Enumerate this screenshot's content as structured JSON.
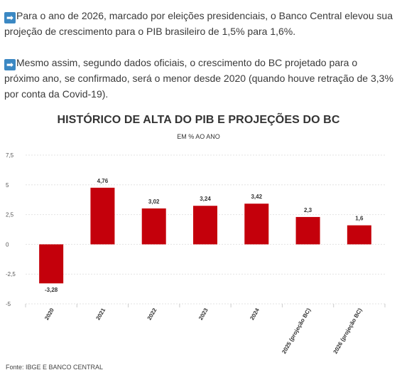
{
  "article": {
    "para1_icon": "right-arrow-icon",
    "para1": "Para o ano de 2026, marcado por eleições presidenciais, o Banco Central elevou sua projeção de crescimento para o PIB brasileiro de 1,5% para 1,6%.",
    "para2_icon": "right-arrow-icon",
    "para2": "Mesmo assim, segundo dados oficiais, o crescimento do BC projetado para o próximo ano, se confirmado, será o menor desde 2020 (quando houve retração de 3,3% por conta da Covid-19)."
  },
  "chart_data": {
    "type": "bar",
    "title": "HISTÓRICO DE ALTA DO PIB E PROJEÇÕES DO BC",
    "subtitle": "EM % AO ANO",
    "categories": [
      "2020",
      "2021",
      "2022",
      "2023",
      "2024",
      "2025 (projeção BC)",
      "2026 (projeção BC)"
    ],
    "values": [
      -3.28,
      4.76,
      3.02,
      3.24,
      3.42,
      2.3,
      1.6
    ],
    "value_labels": [
      "-3,28",
      "4,76",
      "3,02",
      "3,24",
      "3,42",
      "2,3",
      "1,6"
    ],
    "yticks": [
      7.5,
      5,
      2.5,
      0,
      -2.5,
      -5
    ],
    "ytick_labels": [
      "7,5",
      "5",
      "2,5",
      "0",
      "-2,5",
      "-5"
    ],
    "ylim": [
      -5,
      7.5
    ],
    "xlabel": "",
    "ylabel": "",
    "grid": true,
    "bar_color": "#c4000b",
    "source": "Fonte: IBGE E BANCO CENTRAL"
  },
  "colors": {
    "arrow_icon_bg": "#3b88c3"
  }
}
